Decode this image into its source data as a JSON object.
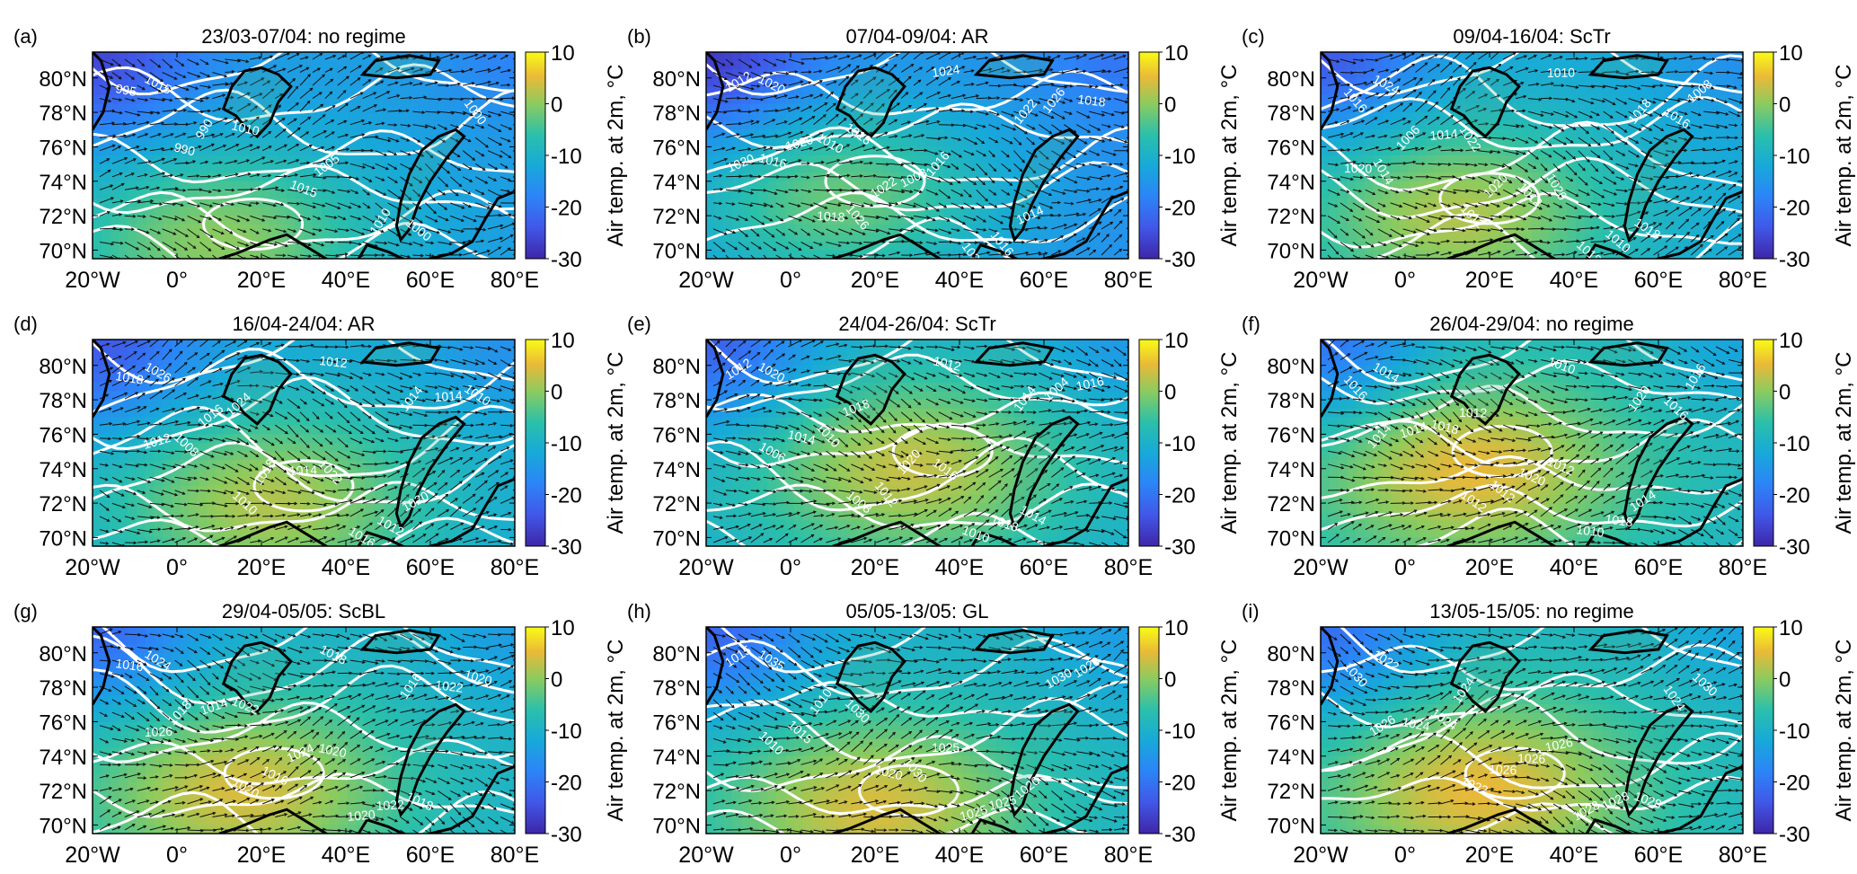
{
  "chart_data": {
    "type": "heatmap",
    "shared": {
      "x_tick_labels": [
        "20°W",
        "0°",
        "20°E",
        "40°E",
        "60°E",
        "80°E"
      ],
      "y_tick_labels": [
        "70°N",
        "72°N",
        "74°N",
        "76°N",
        "78°N",
        "80°N"
      ],
      "xlim": [
        -20,
        80
      ],
      "ylim": [
        69.5,
        81.5
      ],
      "colorbar": {
        "label": "Air temp. at 2m, °C",
        "ticks": [
          "10",
          "0",
          "-10",
          "-20",
          "-30"
        ],
        "range": [
          -30,
          10
        ]
      }
    },
    "panels": [
      {
        "letter": "(a)",
        "title": "23/03-07/04: no regime",
        "contour_labels": [
          "1015",
          "1010",
          "1005",
          "1000",
          "995",
          "990",
          "1015",
          "1010",
          "1000",
          "990"
        ],
        "warm_x": 10,
        "warm_y": 70.5,
        "base_temp": -14
      },
      {
        "letter": "(b)",
        "title": "07/04-09/04: AR",
        "contour_labels": [
          "1020",
          "1018",
          "1016",
          "1014",
          "1012",
          "1010",
          "1008",
          "1016",
          "1018",
          "1020",
          "1022",
          "1024",
          "1026",
          "1016",
          "1026",
          "1024",
          "1022",
          "1020",
          "1018"
        ],
        "warm_x": 12,
        "warm_y": 73,
        "base_temp": -16
      },
      {
        "letter": "(c)",
        "title": "09/04-16/04: ScTr",
        "contour_labels": [
          "1024",
          "1022",
          "1020",
          "1018",
          "1016",
          "1014",
          "1012",
          "1010",
          "1008",
          "1006",
          "1020",
          "1018",
          "1016",
          "1014",
          "1012",
          "1010",
          "1018",
          "1020"
        ],
        "warm_x": 12,
        "warm_y": 72,
        "base_temp": -12
      },
      {
        "letter": "(d)",
        "title": "16/04-24/04: AR",
        "contour_labels": [
          "1026",
          "1024",
          "1022",
          "1020",
          "1018",
          "1016",
          "1014",
          "1012",
          "1010",
          "1008",
          "1018",
          "1016",
          "1014",
          "1012",
          "1010",
          "1012",
          "1014"
        ],
        "warm_x": 22,
        "warm_y": 72,
        "base_temp": -12
      },
      {
        "letter": "(e)",
        "title": "24/04-26/04: ScTr",
        "contour_labels": [
          "1020",
          "1018",
          "1016",
          "1014",
          "1012",
          "1010",
          "1020",
          "1018",
          "1016",
          "1014",
          "1012",
          "1010",
          "1004",
          "1006",
          "1008",
          "1012",
          "1014"
        ],
        "warm_x": 28,
        "warm_y": 74,
        "base_temp": -11
      },
      {
        "letter": "(f)",
        "title": "26/04-29/04: no regime",
        "contour_labels": [
          "1014",
          "1012",
          "1012",
          "1014",
          "1016",
          "1018",
          "1020",
          "1018",
          "1016",
          "1014",
          "1012",
          "1010",
          "1016",
          "1014",
          "1012",
          "1010",
          "1020"
        ],
        "warm_x": 15,
        "warm_y": 74,
        "base_temp": -9
      },
      {
        "letter": "(g)",
        "title": "29/04-05/05: ScBL",
        "contour_labels": [
          "1024",
          "1022",
          "1020",
          "1018",
          "1016",
          "1014",
          "1024",
          "1022",
          "1020",
          "1018",
          "1016",
          "1020",
          "1022",
          "1026",
          "1020",
          "1018",
          "1016"
        ],
        "warm_x": 15,
        "warm_y": 72,
        "base_temp": -10
      },
      {
        "letter": "(h)",
        "title": "05/05-13/05: GL",
        "contour_labels": [
          "1035",
          "1030",
          "1025",
          "1020",
          "1015",
          "1010",
          "1030",
          "1025",
          "1020",
          "1015",
          "1020",
          "1025",
          "1030",
          "1010"
        ],
        "warm_x": 20,
        "warm_y": 71,
        "base_temp": -10
      },
      {
        "letter": "(i)",
        "title": "13/05-15/05: no regime",
        "contour_labels": [
          "1022",
          "1024",
          "1026",
          "1028",
          "1030",
          "1024",
          "1026",
          "1028",
          "1030",
          "1024",
          "1026",
          "1028",
          "1024",
          "1026",
          "1022"
        ],
        "warm_x": 18,
        "warm_y": 72,
        "base_temp": -9
      }
    ]
  }
}
